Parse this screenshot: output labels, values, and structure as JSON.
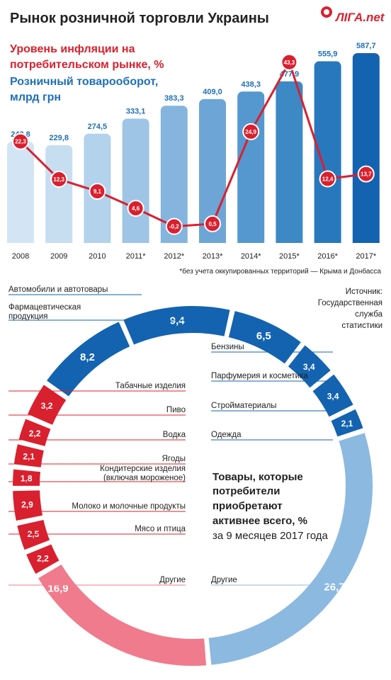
{
  "title": "Рынок розничной торговли Украины",
  "logo": "ЛIГА.net",
  "legend": {
    "inflation": [
      "Уровень инфляции на",
      "потребительском рынке, %"
    ],
    "turnover": [
      "Розничный товарооборот,",
      "млрд грн"
    ]
  },
  "footnote": "*без учета оккупированных территорий — Крыма и Донбасса",
  "source": [
    "Источник:",
    "Государственная",
    "служба",
    "статистики"
  ],
  "center_text": {
    "bold_lines": [
      "Товары, которые",
      "потребители",
      "приобретают",
      "активнее всего, %"
    ],
    "normal_line": "за 9 месяцев 2017 года"
  },
  "colors": {
    "red": "#d9202e",
    "blue_dark": "#1363b0",
    "blue_light": "#8bb9e0",
    "pink": "#f07b8c"
  },
  "chart_data": [
    {
      "type": "bar",
      "categories": [
        "2008",
        "2009",
        "2010",
        "2011*",
        "2012*",
        "2013*",
        "2014*",
        "2015*",
        "2016*",
        "2017*"
      ],
      "series": [
        {
          "name": "Розничный товарооборот, млрд грн",
          "values": [
            243.8,
            229.8,
            274.5,
            333.1,
            383.3,
            409.0,
            438.3,
            477.9,
            555.9,
            587.7
          ],
          "labels": [
            "243,8",
            "229,8",
            "274,5",
            "333,1",
            "383,3",
            "409,0",
            "438,3",
            "477,9",
            "555,9",
            "587,7"
          ]
        },
        {
          "name": "Уровень инфляции на потребительском рынке, %",
          "type": "line",
          "values": [
            22.3,
            12.3,
            9.1,
            4.6,
            -0.2,
            0.5,
            24.9,
            43.3,
            12.4,
            13.7
          ],
          "labels": [
            "22,3",
            "12,3",
            "9,1",
            "4,6",
            "-0,2",
            "0,5",
            "24,9",
            "43,3",
            "12,4",
            "13,7"
          ]
        }
      ]
    },
    {
      "type": "pie",
      "slices": [
        {
          "label": "Фармацевтическая продукция",
          "value": 8.2,
          "text": "8,2",
          "group": "blue"
        },
        {
          "label": "Автомобили и автотовары",
          "value": 9.4,
          "text": "9,4",
          "group": "blue"
        },
        {
          "label": "Бензины",
          "value": 6.5,
          "text": "6,5",
          "group": "blue"
        },
        {
          "label": "Парфумерия и косметика",
          "value": 3.4,
          "text": "3,4",
          "group": "blue"
        },
        {
          "label": "Стройматериалы",
          "value": 3.4,
          "text": "3,4",
          "group": "blue"
        },
        {
          "label": "Одежда",
          "value": 2.1,
          "text": "2,1",
          "group": "blue"
        },
        {
          "label": "Другие",
          "value": 26.7,
          "text": "26,7",
          "group": "blue-light"
        },
        {
          "label": "Другие",
          "value": 16.9,
          "text": "16,9",
          "group": "pink"
        },
        {
          "label": "Мясо и птица",
          "value": 2.2,
          "text": "2,2",
          "group": "red"
        },
        {
          "label": "Молоко и молочные продукты",
          "value": 2.5,
          "text": "2,5",
          "group": "red"
        },
        {
          "label": "Кондитерские изделия (включая мороженое)",
          "value": 2.9,
          "text": "2,9",
          "group": "red"
        },
        {
          "label": "Ягоды",
          "value": 1.8,
          "text": "1,8",
          "group": "red"
        },
        {
          "label": "Водка",
          "value": 2.1,
          "text": "2,1",
          "group": "red"
        },
        {
          "label": "Пиво",
          "value": 2.2,
          "text": "2,2",
          "group": "red"
        },
        {
          "label": "Табачные изделия",
          "value": 3.2,
          "text": "3,2",
          "group": "red"
        }
      ]
    }
  ]
}
